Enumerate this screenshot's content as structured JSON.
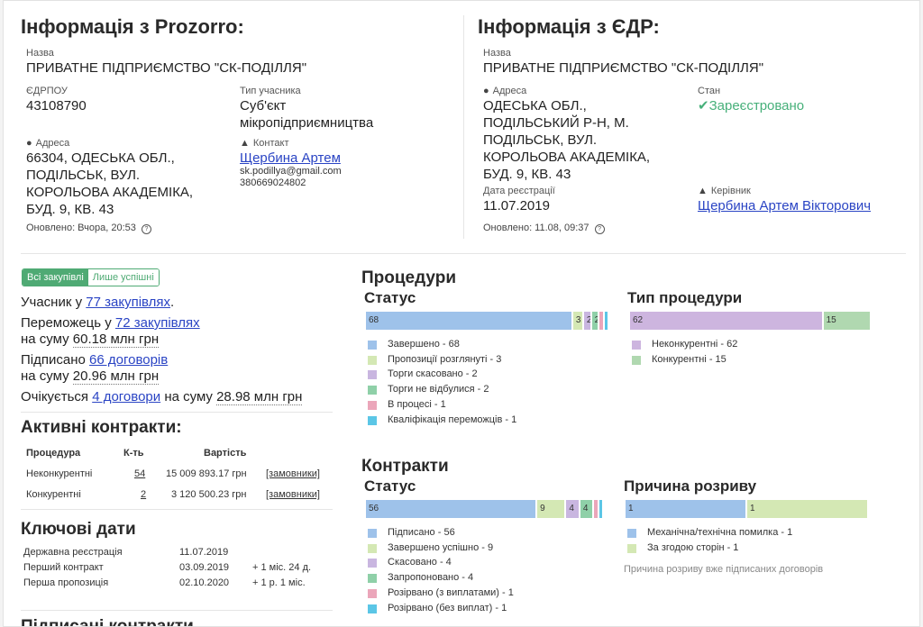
{
  "prozorro": {
    "title": "Інформація з Prozorro:",
    "name_label": "Назва",
    "name": "ПРИВАТНЕ ПІДПРИЄМСТВО \"СК-ПОДІЛЛЯ\"",
    "edrpou_label": "ЄДРПОУ",
    "edrpou": "43108790",
    "type_label": "Тип учасника",
    "type_line1": "Суб'єкт",
    "type_line2": "мікропідприємництва",
    "address_label": "Адреса",
    "address_lines": [
      "66304, ОДЕСЬКА ОБЛ.,",
      "ПОДІЛЬСЬК, ВУЛ.",
      "КОРОЛЬОВА АКАДЕМІКА,",
      "БУД. 9, КВ. 43"
    ],
    "contact_label": "Контакт",
    "contact_name": "Щербина Артем",
    "contact_email": "sk.podillya@gmail.com",
    "contact_phone": "380669024802",
    "updated": "Оновлено: Вчора, 20:53"
  },
  "edr": {
    "title": "Інформація з ЄДР:",
    "name_label": "Назва",
    "name": "ПРИВАТНЕ ПІДПРИЄМСТВО \"СК-ПОДІЛЛЯ\"",
    "address_label": "Адреса",
    "address_lines": [
      "ОДЕСЬКА ОБЛ.,",
      "ПОДІЛЬСЬКИЙ Р-Н, М.",
      "ПОДІЛЬСЬК, ВУЛ.",
      "КОРОЛЬОВА АКАДЕМІКА,",
      "БУД. 9, КВ. 43"
    ],
    "state_label": "Стан",
    "state": "Зареєстровано",
    "reg_date_label": "Дата реєстрації",
    "reg_date": "11.07.2019",
    "head_label": "Керівник",
    "head_name": "Щербина Артем Вікторович",
    "updated": "Оновлено: 11.08, 09:37"
  },
  "toggle": {
    "all": "Всі закупівлі",
    "success": "Лише успішні"
  },
  "stats": {
    "participant_pre": "Учасник у",
    "participant_link": "77 закупівлях",
    "participant_post": ".",
    "winner_pre": "Переможець у",
    "winner_link": "72 закупівлях",
    "winner_sum_pre": "на суму",
    "winner_sum": "60.18 млн грн",
    "signed_pre": "Підписано",
    "signed_link": "66 договорів",
    "signed_sum_pre": "на суму",
    "signed_sum": "20.96 млн грн",
    "expected_pre": "Очікується",
    "expected_link": "4 договори",
    "expected_mid": "на суму",
    "expected_sum": "28.98 млн грн"
  },
  "active_contracts": {
    "title": "Активні контракти:",
    "headers": [
      "Процедура",
      "К-ть",
      "Вартість"
    ],
    "rows": [
      {
        "proc": "Неконкурентні",
        "count": "54",
        "value": "15 009 893.17 грн",
        "link": "[замовники]"
      },
      {
        "proc": "Конкурентні",
        "count": "2",
        "value": "3 120 500.23 грн",
        "link": "[замовники]"
      }
    ]
  },
  "key_dates": {
    "title": "Ключові дати",
    "rows": [
      {
        "label": "Державна реєстрація",
        "date": "11.07.2019",
        "extra": ""
      },
      {
        "label": "Перший контракт",
        "date": "03.09.2019",
        "extra": "+ 1 міс. 24 д."
      },
      {
        "label": "Перша пропозиція",
        "date": "02.10.2020",
        "extra": "+ 1 р. 1 міс."
      }
    ]
  },
  "signed_contracts_title": "Підписані контракти",
  "procedures": {
    "title": "Процедури",
    "status_title": "Статус",
    "type_title": "Тип процедури"
  },
  "contracts": {
    "title": "Контракти",
    "status_title": "Статус",
    "reason_title": "Причина розриву",
    "reason_note": "Причина розриву вже підписаних договорів"
  },
  "chart_data": [
    {
      "type": "bar",
      "title": "Статус",
      "stacked": true,
      "categories": [
        "Завершено",
        "Пропозиції розглянуті",
        "Торги скасовано",
        "Торги не відбулися",
        "В процесі",
        "Кваліфікація переможців"
      ],
      "values": [
        68,
        3,
        2,
        2,
        1,
        1
      ],
      "labels": [
        "Завершено - 68",
        "Пропозиції розглянуті - 3",
        "Торги скасовано - 2",
        "Торги не відбулися - 2",
        "В процесі - 1",
        "Кваліфікація переможців - 1"
      ],
      "colors": [
        "#9ec2ea",
        "#d4e8b4",
        "#c9b6e0",
        "#8fd0a8",
        "#eba6ba",
        "#5bc6e6"
      ]
    },
    {
      "type": "bar",
      "title": "Тип процедури",
      "stacked": true,
      "categories": [
        "Неконкурентні",
        "Конкурентні"
      ],
      "values": [
        62,
        15
      ],
      "labels": [
        "Неконкурентні - 62",
        "Конкурентні - 15"
      ],
      "colors": [
        "#cdb5df",
        "#b0d8b0"
      ]
    },
    {
      "type": "bar",
      "title": "Статус",
      "stacked": true,
      "categories": [
        "Підписано",
        "Завершено успішно",
        "Скасовано",
        "Запропоновано",
        "Розірвано (з виплатами)",
        "Розірвано (без виплат)"
      ],
      "values": [
        56,
        9,
        4,
        4,
        1,
        1
      ],
      "labels": [
        "Підписано - 56",
        "Завершено успішно - 9",
        "Скасовано - 4",
        "Запропоновано - 4",
        "Розірвано (з виплатами) - 1",
        "Розірвано (без виплат) - 1"
      ],
      "colors": [
        "#9ec2ea",
        "#d4e8b4",
        "#c9b6e0",
        "#8fd0a8",
        "#eba6ba",
        "#5bc6e6"
      ]
    },
    {
      "type": "bar",
      "title": "Причина розриву",
      "stacked": true,
      "categories": [
        "Механічна/технічна помилка",
        "За згодою сторін"
      ],
      "values": [
        1,
        1
      ],
      "labels": [
        "Механічна/технічна помилка - 1",
        "За згодою сторін - 1"
      ],
      "colors": [
        "#9ec2ea",
        "#d4e8b4"
      ]
    }
  ]
}
